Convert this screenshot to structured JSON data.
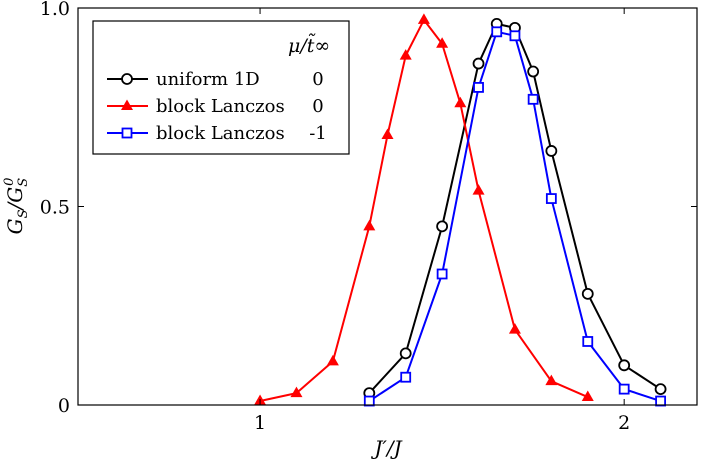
{
  "chart_data": {
    "type": "line",
    "xlabel": "J′/J",
    "ylabel": "G_S/G_S^0",
    "xlim": [
      0.5,
      2.2
    ],
    "ylim": [
      0,
      1.0
    ],
    "xticks": [
      1,
      2
    ],
    "xtick_labels": [
      "1",
      "2"
    ],
    "yticks": [
      0,
      0.5,
      1.0
    ],
    "ytick_labels": [
      "0",
      "0.5",
      "1.0"
    ],
    "grid": false,
    "legend": {
      "placement": "top-left",
      "header": "μ/t̃∞",
      "entries": [
        {
          "label": "uniform 1D",
          "mu": "0"
        },
        {
          "label": "block Lanczos",
          "mu": "0"
        },
        {
          "label": "block Lanczos",
          "mu": "-1"
        }
      ]
    },
    "series": [
      {
        "marker": "circle",
        "color": "#000000",
        "x": [
          1.3,
          1.4,
          1.5,
          1.6,
          1.65,
          1.7,
          1.75,
          1.8,
          1.9,
          2.0,
          2.1
        ],
        "y": [
          0.03,
          0.13,
          0.45,
          0.86,
          0.96,
          0.95,
          0.84,
          0.64,
          0.28,
          0.1,
          0.04
        ]
      },
      {
        "marker": "triangle",
        "color": "#ff0000",
        "x": [
          1.0,
          1.1,
          1.2,
          1.3,
          1.35,
          1.4,
          1.45,
          1.5,
          1.55,
          1.6,
          1.7,
          1.8,
          1.9
        ],
        "y": [
          0.01,
          0.03,
          0.11,
          0.45,
          0.68,
          0.88,
          0.97,
          0.91,
          0.76,
          0.54,
          0.19,
          0.06,
          0.02
        ]
      },
      {
        "marker": "square",
        "color": "#0000ff",
        "x": [
          1.3,
          1.4,
          1.5,
          1.6,
          1.65,
          1.7,
          1.75,
          1.8,
          1.9,
          2.0,
          2.1
        ],
        "y": [
          0.01,
          0.07,
          0.33,
          0.8,
          0.94,
          0.93,
          0.77,
          0.52,
          0.16,
          0.04,
          0.01
        ]
      }
    ]
  }
}
